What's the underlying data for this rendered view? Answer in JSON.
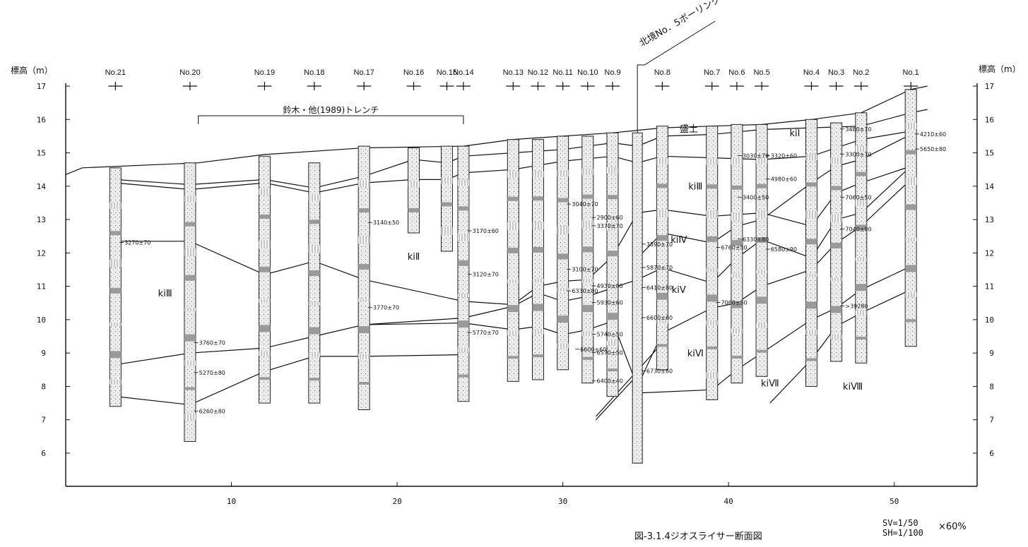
{
  "figure": {
    "caption": "図-3.1.4ジオスライサー断面図",
    "scale_vertical": "SV=1/50",
    "scale_horizontal": "SH=1/100",
    "reduction": "×60%",
    "left_axis_title": "標高（m）",
    "right_axis_title": "標高（m）",
    "trench_label": "鈴木・他(1989)トレンチ",
    "borehole_label": "北境No．5ボーリング",
    "fill_label": "盛土"
  },
  "y_axis": {
    "min": 6,
    "max": 17,
    "ticks": [
      "6",
      "7",
      "8",
      "9",
      "10",
      "11",
      "12",
      "13",
      "14",
      "15",
      "16",
      "17"
    ]
  },
  "x_axis": {
    "min": 0,
    "max": 55,
    "ticks": [
      "10",
      "20",
      "30",
      "40",
      "50"
    ]
  },
  "cores": [
    {
      "name": "No.21",
      "x": 3.0,
      "top": 14.55,
      "bottom": 7.4
    },
    {
      "name": "No.20",
      "x": 7.5,
      "top": 14.7,
      "bottom": 6.35
    },
    {
      "name": "No.19",
      "x": 12.0,
      "top": 14.9,
      "bottom": 7.5
    },
    {
      "name": "No.18",
      "x": 15.0,
      "top": 14.7,
      "bottom": 7.5
    },
    {
      "name": "No.17",
      "x": 18.0,
      "top": 15.2,
      "bottom": 7.3
    },
    {
      "name": "No.16",
      "x": 21.0,
      "top": 15.15,
      "bottom": 12.6
    },
    {
      "name": "No.15",
      "x": 23.0,
      "top": 15.2,
      "bottom": 12.05
    },
    {
      "name": "No.14",
      "x": 24.0,
      "top": 15.2,
      "bottom": 7.55
    },
    {
      "name": "No.13",
      "x": 27.0,
      "top": 15.4,
      "bottom": 8.15
    },
    {
      "name": "No.12",
      "x": 28.5,
      "top": 15.4,
      "bottom": 8.2
    },
    {
      "name": "No.11",
      "x": 30.0,
      "top": 15.5,
      "bottom": 8.5
    },
    {
      "name": "No.10",
      "x": 31.5,
      "top": 15.5,
      "bottom": 8.1
    },
    {
      "name": "No.9",
      "x": 33.0,
      "top": 15.6,
      "bottom": 7.7
    },
    {
      "name": "No.8",
      "x": 36.0,
      "top": 15.8,
      "bottom": 8.5
    },
    {
      "name": "No.7",
      "x": 39.0,
      "top": 15.8,
      "bottom": 7.6
    },
    {
      "name": "No.6",
      "x": 40.5,
      "top": 15.85,
      "bottom": 8.1
    },
    {
      "name": "No.5",
      "x": 42.0,
      "top": 15.85,
      "bottom": 8.3
    },
    {
      "name": "No.4",
      "x": 45.0,
      "top": 16.0,
      "bottom": 8.0
    },
    {
      "name": "No.3",
      "x": 46.5,
      "top": 15.9,
      "bottom": 8.75
    },
    {
      "name": "No.2",
      "x": 48.0,
      "top": 16.2,
      "bottom": 8.7
    },
    {
      "name": "No.1",
      "x": 51.0,
      "top": 16.9,
      "bottom": 9.2
    }
  ],
  "borehole": {
    "x": 34.5,
    "top": 15.6,
    "bottom": 5.7
  },
  "units": [
    {
      "label": "kiⅠ",
      "x": 44.0,
      "y": 15.5
    },
    {
      "label": "kiⅡ",
      "x": 21.0,
      "y": 11.8
    },
    {
      "label": "kiⅢ",
      "x": 6.0,
      "y": 10.7
    },
    {
      "label": "kiⅢ",
      "x": 38.0,
      "y": 13.9
    },
    {
      "label": "kiⅣ",
      "x": 37.0,
      "y": 12.3
    },
    {
      "label": "kiⅤ",
      "x": 37.0,
      "y": 10.8
    },
    {
      "label": "kiⅥ",
      "x": 38.0,
      "y": 8.9
    },
    {
      "label": "kiⅦ",
      "x": 42.5,
      "y": 8.0
    },
    {
      "label": "kiⅧ",
      "x": 47.5,
      "y": 7.9
    }
  ],
  "horizons": [
    {
      "name": "ground-surface",
      "points": [
        [
          0,
          14.35
        ],
        [
          1,
          14.55
        ],
        [
          8,
          14.7
        ],
        [
          12,
          14.95
        ],
        [
          18,
          15.15
        ],
        [
          24,
          15.2
        ],
        [
          27,
          15.4
        ],
        [
          30,
          15.5
        ],
        [
          33,
          15.6
        ],
        [
          36,
          15.75
        ],
        [
          39,
          15.8
        ],
        [
          42,
          15.85
        ],
        [
          45,
          16.0
        ],
        [
          48,
          16.2
        ],
        [
          51,
          16.9
        ],
        [
          52,
          17.0
        ]
      ]
    },
    {
      "name": "boundary-ki2-ki3-upper",
      "points": [
        [
          3,
          14.2
        ],
        [
          7.5,
          14.05
        ],
        [
          12,
          14.2
        ],
        [
          15,
          13.95
        ],
        [
          18,
          14.3
        ],
        [
          21,
          14.8
        ],
        [
          23,
          14.7
        ],
        [
          24,
          14.9
        ],
        [
          27,
          15.0
        ],
        [
          30,
          15.1
        ],
        [
          33,
          15.3
        ],
        [
          34.5,
          15.2
        ],
        [
          36,
          15.5
        ],
        [
          39,
          15.55
        ],
        [
          42,
          15.7
        ],
        [
          45,
          15.75
        ],
        [
          48,
          15.8
        ],
        [
          51,
          16.2
        ],
        [
          52,
          16.3
        ]
      ]
    },
    {
      "name": "boundary-ki1-base",
      "points": [
        [
          3,
          14.1
        ],
        [
          7.5,
          13.9
        ],
        [
          12,
          14.1
        ],
        [
          15,
          13.8
        ],
        [
          18,
          14.1
        ],
        [
          21,
          14.2
        ],
        [
          23,
          14.2
        ],
        [
          24,
          14.4
        ],
        [
          27,
          14.5
        ],
        [
          30,
          14.75
        ],
        [
          33,
          14.9
        ],
        [
          34.5,
          14.7
        ],
        [
          36,
          14.9
        ],
        [
          39,
          14.85
        ],
        [
          42,
          14.8
        ],
        [
          45,
          14.9
        ],
        [
          48,
          15.4
        ],
        [
          51,
          15.65
        ]
      ]
    },
    {
      "name": "boundary-ki2-ki3",
      "points": [
        [
          3,
          12.35
        ],
        [
          7.5,
          12.35
        ],
        [
          12,
          11.35
        ],
        [
          15,
          11.75
        ],
        [
          18,
          11.2
        ],
        [
          24,
          10.55
        ],
        [
          27,
          10.45
        ],
        [
          28.5,
          11.0
        ],
        [
          30,
          11.15
        ],
        [
          31.5,
          11.2
        ],
        [
          33,
          11.9
        ],
        [
          34.5,
          13.2
        ],
        [
          36,
          13.3
        ],
        [
          39,
          13.1
        ],
        [
          40.5,
          13.15
        ],
        [
          42,
          13.2
        ],
        [
          45,
          12.8
        ],
        [
          46.5,
          13.8
        ],
        [
          48,
          14.1
        ],
        [
          51,
          14.6
        ]
      ]
    },
    {
      "name": "boundary-ki3-ki4",
      "points": [
        [
          34.5,
          11.85
        ],
        [
          36,
          12.6
        ],
        [
          39,
          12.3
        ],
        [
          40.5,
          12.8
        ],
        [
          42,
          13.0
        ],
        [
          45,
          14.1
        ],
        [
          46.5,
          14.6
        ],
        [
          48,
          14.8
        ],
        [
          51,
          15.55
        ]
      ]
    },
    {
      "name": "boundary-ki4-ki5",
      "points": [
        [
          18,
          9.85
        ],
        [
          24,
          10.05
        ],
        [
          27,
          10.4
        ],
        [
          28.5,
          10.8
        ],
        [
          30,
          10.55
        ],
        [
          31.5,
          10.7
        ],
        [
          33,
          10.95
        ],
        [
          34.5,
          11.2
        ],
        [
          36,
          11.55
        ],
        [
          39,
          11.1
        ],
        [
          40.5,
          11.85
        ],
        [
          42,
          12.4
        ],
        [
          45,
          11.85
        ],
        [
          46.5,
          13.0
        ],
        [
          48,
          13.2
        ],
        [
          51,
          14.6
        ]
      ]
    },
    {
      "name": "boundary-ki5-ki6",
      "points": [
        [
          3,
          8.65
        ],
        [
          7.5,
          9.0
        ],
        [
          12,
          9.15
        ],
        [
          15,
          9.5
        ],
        [
          18,
          9.85
        ],
        [
          24,
          9.9
        ],
        [
          27,
          9.7
        ],
        [
          28.5,
          9.8
        ],
        [
          30,
          9.55
        ],
        [
          31.5,
          9.7
        ],
        [
          33,
          9.95
        ],
        [
          34.5,
          8.0
        ],
        [
          36,
          9.6
        ],
        [
          39,
          10.35
        ],
        [
          40.5,
          10.5
        ],
        [
          42,
          11.0
        ],
        [
          45,
          11.5
        ],
        [
          46.5,
          12.3
        ],
        [
          48,
          12.8
        ],
        [
          51,
          14.2
        ]
      ]
    },
    {
      "name": "boundary-ki6-ki7",
      "points": [
        [
          3,
          7.7
        ],
        [
          7.5,
          7.45
        ],
        [
          12,
          8.45
        ],
        [
          15,
          8.9
        ],
        [
          18,
          8.9
        ],
        [
          24,
          8.95
        ]
      ]
    },
    {
      "name": "boundary-ki7-ki8",
      "points": [
        [
          34.5,
          7.8
        ],
        [
          39,
          7.9
        ],
        [
          40.5,
          8.5
        ],
        [
          42,
          9.0
        ],
        [
          45,
          10.0
        ],
        [
          46.5,
          10.35
        ],
        [
          48,
          10.9
        ],
        [
          51,
          11.6
        ]
      ]
    },
    {
      "name": "boundary-ki8-lower",
      "points": [
        [
          42.5,
          7.5
        ],
        [
          45,
          8.8
        ],
        [
          46.5,
          9.8
        ],
        [
          48,
          10.2
        ],
        [
          51,
          10.9
        ]
      ]
    },
    {
      "name": "fault-line",
      "points": [
        [
          32.0,
          7.1
        ],
        [
          36,
          9.3
        ]
      ]
    },
    {
      "name": "fault-line-2",
      "points": [
        [
          32.0,
          7.0
        ],
        [
          34.8,
          8.5
        ]
      ]
    }
  ],
  "dates": [
    {
      "text": "3270±70",
      "x": 3.5,
      "y": 12.25
    },
    {
      "text": "3760±70",
      "x": 8.0,
      "y": 9.25
    },
    {
      "text": "5270±80",
      "x": 8.0,
      "y": 8.35
    },
    {
      "text": "6260±80",
      "x": 8.0,
      "y": 7.2
    },
    {
      "text": "3140±50",
      "x": 18.5,
      "y": 12.85
    },
    {
      "text": "3770±70",
      "x": 18.5,
      "y": 10.3
    },
    {
      "text": "3170±60",
      "x": 24.5,
      "y": 12.6
    },
    {
      "text": "3120±70",
      "x": 24.5,
      "y": 11.3
    },
    {
      "text": "5770±70",
      "x": 24.5,
      "y": 9.55
    },
    {
      "text": "3040±70",
      "x": 30.5,
      "y": 13.4
    },
    {
      "text": "3100±70",
      "x": 30.5,
      "y": 11.45
    },
    {
      "text": "6330±80",
      "x": 30.5,
      "y": 10.8
    },
    {
      "text": "6600±60",
      "x": 31.0,
      "y": 9.05
    },
    {
      "text": "2900±60",
      "x": 32.0,
      "y": 13.0
    },
    {
      "text": "3370±70",
      "x": 32.0,
      "y": 12.75
    },
    {
      "text": "4930±80",
      "x": 32.0,
      "y": 10.95
    },
    {
      "text": "5930±60",
      "x": 32.0,
      "y": 10.45
    },
    {
      "text": "5740±50",
      "x": 32.0,
      "y": 9.5
    },
    {
      "text": "6570±50",
      "x": 32.0,
      "y": 8.95
    },
    {
      "text": "6400±40",
      "x": 32.0,
      "y": 8.1
    },
    {
      "text": "3590±70",
      "x": 35.0,
      "y": 12.2
    },
    {
      "text": "5870±70",
      "x": 35.0,
      "y": 11.5
    },
    {
      "text": "6410±80",
      "x": 35.0,
      "y": 10.9
    },
    {
      "text": "6600±60",
      "x": 35.0,
      "y": 10.0
    },
    {
      "text": "6730±60",
      "x": 35.0,
      "y": 8.4
    },
    {
      "text": "3030±70",
      "x": 40.8,
      "y": 14.85
    },
    {
      "text": "3400±50",
      "x": 40.8,
      "y": 13.6
    },
    {
      "text": "6330±80",
      "x": 40.8,
      "y": 12.35
    },
    {
      "text": "6760±50",
      "x": 39.5,
      "y": 12.1
    },
    {
      "text": "7060±50",
      "x": 39.5,
      "y": 10.45
    },
    {
      "text": "3320±60",
      "x": 42.5,
      "y": 14.85
    },
    {
      "text": "4980±60",
      "x": 42.5,
      "y": 14.15
    },
    {
      "text": "6580±90",
      "x": 42.5,
      "y": 12.05
    },
    {
      "text": "3300±70",
      "x": 47.0,
      "y": 14.9
    },
    {
      "text": "3480±70",
      "x": 47.0,
      "y": 15.65
    },
    {
      "text": "7060±50",
      "x": 47.0,
      "y": 13.6
    },
    {
      "text": "7040±90",
      "x": 47.0,
      "y": 12.65
    },
    {
      "text": ">39280",
      "x": 47.0,
      "y": 10.35
    },
    {
      "text": "4210±60",
      "x": 51.5,
      "y": 15.5
    },
    {
      "text": "5650±80",
      "x": 51.5,
      "y": 15.05
    }
  ],
  "colors": {
    "line": "#111111",
    "core_fill": "#e9e9e9",
    "background": "#ffffff"
  }
}
